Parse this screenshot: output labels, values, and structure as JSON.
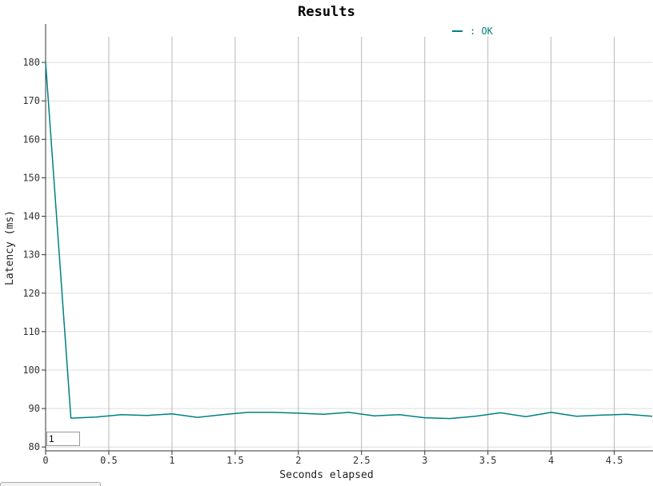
{
  "chart_data": {
    "type": "line",
    "title": "Results",
    "xlabel": "Seconds elapsed",
    "ylabel": "Latency (ms)",
    "xlim": [
      0,
      4.8
    ],
    "ylim": [
      79,
      190
    ],
    "x_ticks": [
      0,
      0.5,
      1,
      1.5,
      2,
      2.5,
      3,
      3.5,
      4,
      4.5
    ],
    "x_tick_labels": [
      "0",
      "0.5",
      "1",
      "1.5",
      "2",
      "2.5",
      "3",
      "3.5",
      "4",
      "4.5"
    ],
    "y_ticks": [
      80,
      90,
      100,
      110,
      120,
      130,
      140,
      150,
      160,
      170,
      180
    ],
    "y_tick_labels": [
      "80",
      "90",
      "100",
      "110",
      "120",
      "130",
      "140",
      "150",
      "160",
      "170",
      "180"
    ],
    "grid": true,
    "legend_position": "top-center",
    "series": [
      {
        "name": ": OK",
        "color": "#008080",
        "x": [
          0,
          0.2,
          0.4,
          0.6,
          0.8,
          1.0,
          1.2,
          1.4,
          1.6,
          1.8,
          2.0,
          2.2,
          2.4,
          2.6,
          2.8,
          3.0,
          3.2,
          3.4,
          3.6,
          3.8,
          4.0,
          4.2,
          4.4,
          4.6,
          4.8
        ],
        "y": [
          180,
          87.5,
          87.8,
          88.4,
          88.2,
          88.6,
          87.7,
          88.4,
          89.0,
          89.0,
          88.8,
          88.5,
          89.0,
          88.1,
          88.4,
          87.6,
          87.4,
          88.0,
          88.9,
          87.9,
          89.0,
          88.0,
          88.3,
          88.5,
          88.0
        ]
      }
    ]
  },
  "controls": {
    "rolling_period_value": "1"
  }
}
